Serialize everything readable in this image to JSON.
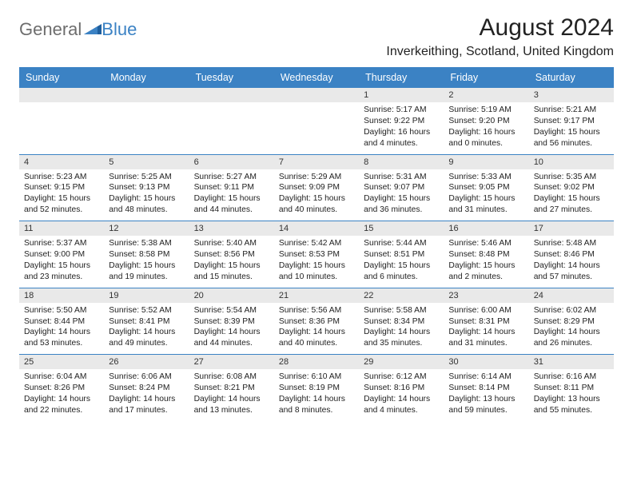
{
  "logo": {
    "text1": "General",
    "text2": "Blue"
  },
  "title": "August 2024",
  "location": "Inverkeithing, Scotland, United Kingdom",
  "colors": {
    "header_bg": "#3b82c4",
    "daynum_bg": "#e9e9e9",
    "row_border": "#3b82c4",
    "text": "#222222",
    "logo_gray": "#6d6d6d",
    "logo_blue": "#3b82c4"
  },
  "weekdays": [
    "Sunday",
    "Monday",
    "Tuesday",
    "Wednesday",
    "Thursday",
    "Friday",
    "Saturday"
  ],
  "weeks": [
    [
      null,
      null,
      null,
      null,
      {
        "n": "1",
        "sr": "Sunrise: 5:17 AM",
        "ss": "Sunset: 9:22 PM",
        "d1": "Daylight: 16 hours",
        "d2": "and 4 minutes."
      },
      {
        "n": "2",
        "sr": "Sunrise: 5:19 AM",
        "ss": "Sunset: 9:20 PM",
        "d1": "Daylight: 16 hours",
        "d2": "and 0 minutes."
      },
      {
        "n": "3",
        "sr": "Sunrise: 5:21 AM",
        "ss": "Sunset: 9:17 PM",
        "d1": "Daylight: 15 hours",
        "d2": "and 56 minutes."
      }
    ],
    [
      {
        "n": "4",
        "sr": "Sunrise: 5:23 AM",
        "ss": "Sunset: 9:15 PM",
        "d1": "Daylight: 15 hours",
        "d2": "and 52 minutes."
      },
      {
        "n": "5",
        "sr": "Sunrise: 5:25 AM",
        "ss": "Sunset: 9:13 PM",
        "d1": "Daylight: 15 hours",
        "d2": "and 48 minutes."
      },
      {
        "n": "6",
        "sr": "Sunrise: 5:27 AM",
        "ss": "Sunset: 9:11 PM",
        "d1": "Daylight: 15 hours",
        "d2": "and 44 minutes."
      },
      {
        "n": "7",
        "sr": "Sunrise: 5:29 AM",
        "ss": "Sunset: 9:09 PM",
        "d1": "Daylight: 15 hours",
        "d2": "and 40 minutes."
      },
      {
        "n": "8",
        "sr": "Sunrise: 5:31 AM",
        "ss": "Sunset: 9:07 PM",
        "d1": "Daylight: 15 hours",
        "d2": "and 36 minutes."
      },
      {
        "n": "9",
        "sr": "Sunrise: 5:33 AM",
        "ss": "Sunset: 9:05 PM",
        "d1": "Daylight: 15 hours",
        "d2": "and 31 minutes."
      },
      {
        "n": "10",
        "sr": "Sunrise: 5:35 AM",
        "ss": "Sunset: 9:02 PM",
        "d1": "Daylight: 15 hours",
        "d2": "and 27 minutes."
      }
    ],
    [
      {
        "n": "11",
        "sr": "Sunrise: 5:37 AM",
        "ss": "Sunset: 9:00 PM",
        "d1": "Daylight: 15 hours",
        "d2": "and 23 minutes."
      },
      {
        "n": "12",
        "sr": "Sunrise: 5:38 AM",
        "ss": "Sunset: 8:58 PM",
        "d1": "Daylight: 15 hours",
        "d2": "and 19 minutes."
      },
      {
        "n": "13",
        "sr": "Sunrise: 5:40 AM",
        "ss": "Sunset: 8:56 PM",
        "d1": "Daylight: 15 hours",
        "d2": "and 15 minutes."
      },
      {
        "n": "14",
        "sr": "Sunrise: 5:42 AM",
        "ss": "Sunset: 8:53 PM",
        "d1": "Daylight: 15 hours",
        "d2": "and 10 minutes."
      },
      {
        "n": "15",
        "sr": "Sunrise: 5:44 AM",
        "ss": "Sunset: 8:51 PM",
        "d1": "Daylight: 15 hours",
        "d2": "and 6 minutes."
      },
      {
        "n": "16",
        "sr": "Sunrise: 5:46 AM",
        "ss": "Sunset: 8:48 PM",
        "d1": "Daylight: 15 hours",
        "d2": "and 2 minutes."
      },
      {
        "n": "17",
        "sr": "Sunrise: 5:48 AM",
        "ss": "Sunset: 8:46 PM",
        "d1": "Daylight: 14 hours",
        "d2": "and 57 minutes."
      }
    ],
    [
      {
        "n": "18",
        "sr": "Sunrise: 5:50 AM",
        "ss": "Sunset: 8:44 PM",
        "d1": "Daylight: 14 hours",
        "d2": "and 53 minutes."
      },
      {
        "n": "19",
        "sr": "Sunrise: 5:52 AM",
        "ss": "Sunset: 8:41 PM",
        "d1": "Daylight: 14 hours",
        "d2": "and 49 minutes."
      },
      {
        "n": "20",
        "sr": "Sunrise: 5:54 AM",
        "ss": "Sunset: 8:39 PM",
        "d1": "Daylight: 14 hours",
        "d2": "and 44 minutes."
      },
      {
        "n": "21",
        "sr": "Sunrise: 5:56 AM",
        "ss": "Sunset: 8:36 PM",
        "d1": "Daylight: 14 hours",
        "d2": "and 40 minutes."
      },
      {
        "n": "22",
        "sr": "Sunrise: 5:58 AM",
        "ss": "Sunset: 8:34 PM",
        "d1": "Daylight: 14 hours",
        "d2": "and 35 minutes."
      },
      {
        "n": "23",
        "sr": "Sunrise: 6:00 AM",
        "ss": "Sunset: 8:31 PM",
        "d1": "Daylight: 14 hours",
        "d2": "and 31 minutes."
      },
      {
        "n": "24",
        "sr": "Sunrise: 6:02 AM",
        "ss": "Sunset: 8:29 PM",
        "d1": "Daylight: 14 hours",
        "d2": "and 26 minutes."
      }
    ],
    [
      {
        "n": "25",
        "sr": "Sunrise: 6:04 AM",
        "ss": "Sunset: 8:26 PM",
        "d1": "Daylight: 14 hours",
        "d2": "and 22 minutes."
      },
      {
        "n": "26",
        "sr": "Sunrise: 6:06 AM",
        "ss": "Sunset: 8:24 PM",
        "d1": "Daylight: 14 hours",
        "d2": "and 17 minutes."
      },
      {
        "n": "27",
        "sr": "Sunrise: 6:08 AM",
        "ss": "Sunset: 8:21 PM",
        "d1": "Daylight: 14 hours",
        "d2": "and 13 minutes."
      },
      {
        "n": "28",
        "sr": "Sunrise: 6:10 AM",
        "ss": "Sunset: 8:19 PM",
        "d1": "Daylight: 14 hours",
        "d2": "and 8 minutes."
      },
      {
        "n": "29",
        "sr": "Sunrise: 6:12 AM",
        "ss": "Sunset: 8:16 PM",
        "d1": "Daylight: 14 hours",
        "d2": "and 4 minutes."
      },
      {
        "n": "30",
        "sr": "Sunrise: 6:14 AM",
        "ss": "Sunset: 8:14 PM",
        "d1": "Daylight: 13 hours",
        "d2": "and 59 minutes."
      },
      {
        "n": "31",
        "sr": "Sunrise: 6:16 AM",
        "ss": "Sunset: 8:11 PM",
        "d1": "Daylight: 13 hours",
        "d2": "and 55 minutes."
      }
    ]
  ]
}
